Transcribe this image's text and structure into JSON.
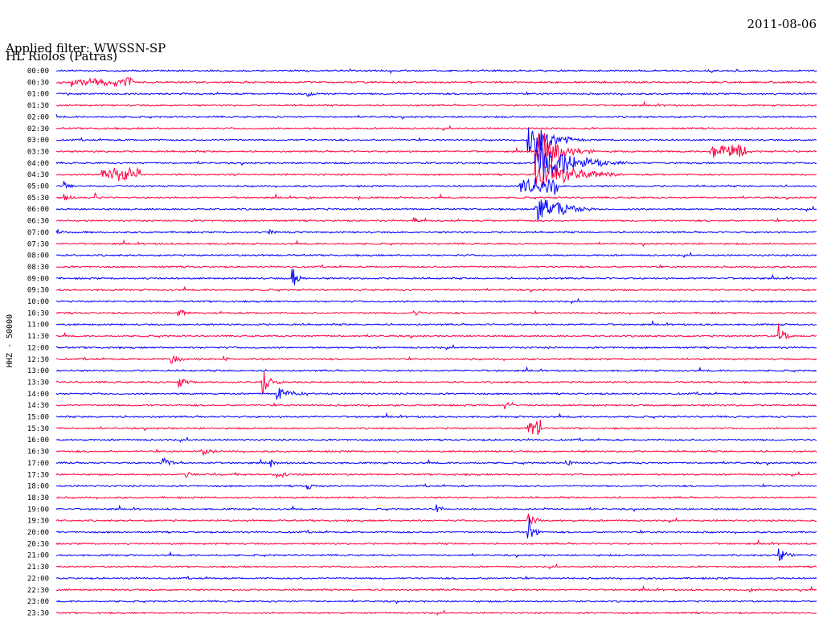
{
  "header": {
    "station": "HL Riolos (Patras)",
    "date": "2011-08-06",
    "filter_label": "Applied filter: WWSSN-SP"
  },
  "colors": {
    "trace_even": "#0000ff",
    "trace_odd": "#ff0040"
  },
  "chart_data": {
    "type": "line",
    "ylabel": "HHZ - 50000",
    "row_labels": [
      "00:00",
      "00:30",
      "01:00",
      "01:30",
      "02:00",
      "02:30",
      "03:00",
      "03:30",
      "04:00",
      "04:30",
      "05:00",
      "05:30",
      "06:00",
      "06:30",
      "07:00",
      "07:30",
      "08:00",
      "08:30",
      "09:00",
      "09:30",
      "10:00",
      "10:30",
      "11:00",
      "11:30",
      "12:00",
      "12:30",
      "13:00",
      "13:30",
      "14:00",
      "14:30",
      "15:00",
      "15:30",
      "16:00",
      "16:30",
      "17:00",
      "17:30",
      "18:00",
      "18:30",
      "19:00",
      "19:30",
      "20:00",
      "20:30",
      "21:00",
      "21:30",
      "22:00",
      "22:30",
      "23:00",
      "23:30"
    ],
    "x_range_minutes": [
      0,
      30
    ],
    "events": [
      {
        "row": 1,
        "t": 0.02,
        "amp": 6,
        "dur": 0.08,
        "type": "burst"
      },
      {
        "row": 2,
        "t": 0.33,
        "amp": 5,
        "dur": 0.04,
        "type": "quake"
      },
      {
        "row": 6,
        "t": 0.62,
        "amp": 30,
        "dur": 0.08,
        "type": "quake"
      },
      {
        "row": 7,
        "t": 0.63,
        "amp": 40,
        "dur": 0.08,
        "type": "quake"
      },
      {
        "row": 7,
        "t": 0.86,
        "amp": 10,
        "dur": 0.05,
        "type": "burst"
      },
      {
        "row": 8,
        "t": 0.63,
        "amp": 35,
        "dur": 0.12,
        "type": "quake"
      },
      {
        "row": 9,
        "t": 0.06,
        "amp": 11,
        "dur": 0.05,
        "type": "burst"
      },
      {
        "row": 9,
        "t": 0.63,
        "amp": 30,
        "dur": 0.12,
        "type": "quake"
      },
      {
        "row": 10,
        "t": 0.61,
        "amp": 12,
        "dur": 0.05,
        "type": "burst"
      },
      {
        "row": 10,
        "t": 0.01,
        "amp": 12,
        "dur": 0.02,
        "type": "quake"
      },
      {
        "row": 11,
        "t": 0.01,
        "amp": 12,
        "dur": 0.02,
        "type": "quake"
      },
      {
        "row": 11,
        "t": 0.05,
        "amp": 10,
        "dur": 0.02,
        "type": "quake"
      },
      {
        "row": 11,
        "t": 0.33,
        "amp": 4,
        "dur": 0.03,
        "type": "quake"
      },
      {
        "row": 12,
        "t": 0.63,
        "amp": 30,
        "dur": 0.08,
        "type": "quake"
      },
      {
        "row": 13,
        "t": 0.47,
        "amp": 6,
        "dur": 0.02,
        "type": "quake"
      },
      {
        "row": 14,
        "t": 0.28,
        "amp": 8,
        "dur": 0.02,
        "type": "quake"
      },
      {
        "row": 14,
        "t": 0.0,
        "amp": 9,
        "dur": 0.02,
        "type": "quake"
      },
      {
        "row": 18,
        "t": 0.31,
        "amp": 20,
        "dur": 0.02,
        "type": "quake"
      },
      {
        "row": 21,
        "t": 0.16,
        "amp": 7,
        "dur": 0.03,
        "type": "quake"
      },
      {
        "row": 21,
        "t": 0.47,
        "amp": 9,
        "dur": 0.02,
        "type": "quake"
      },
      {
        "row": 23,
        "t": 0.95,
        "amp": 20,
        "dur": 0.02,
        "type": "quake"
      },
      {
        "row": 25,
        "t": 0.15,
        "amp": 12,
        "dur": 0.03,
        "type": "quake"
      },
      {
        "row": 25,
        "t": 0.22,
        "amp": 5,
        "dur": 0.02,
        "type": "quake"
      },
      {
        "row": 27,
        "t": 0.16,
        "amp": 12,
        "dur": 0.03,
        "type": "quake"
      },
      {
        "row": 27,
        "t": 0.27,
        "amp": 20,
        "dur": 0.03,
        "type": "quake"
      },
      {
        "row": 28,
        "t": 0.29,
        "amp": 12,
        "dur": 0.05,
        "type": "quake"
      },
      {
        "row": 29,
        "t": 0.59,
        "amp": 6,
        "dur": 0.02,
        "type": "quake"
      },
      {
        "row": 31,
        "t": 0.62,
        "amp": 12,
        "dur": 0.02,
        "type": "burst"
      },
      {
        "row": 33,
        "t": 0.19,
        "amp": 14,
        "dur": 0.03,
        "type": "quake"
      },
      {
        "row": 34,
        "t": 0.14,
        "amp": 18,
        "dur": 0.02,
        "type": "quake"
      },
      {
        "row": 34,
        "t": 0.28,
        "amp": 10,
        "dur": 0.02,
        "type": "quake"
      },
      {
        "row": 34,
        "t": 0.67,
        "amp": 6,
        "dur": 0.03,
        "type": "quake"
      },
      {
        "row": 35,
        "t": 0.17,
        "amp": 7,
        "dur": 0.02,
        "type": "quake"
      },
      {
        "row": 35,
        "t": 0.29,
        "amp": 6,
        "dur": 0.04,
        "type": "quake"
      },
      {
        "row": 36,
        "t": 0.33,
        "amp": 8,
        "dur": 0.02,
        "type": "quake"
      },
      {
        "row": 38,
        "t": 0.5,
        "amp": 8,
        "dur": 0.02,
        "type": "quake"
      },
      {
        "row": 39,
        "t": 0.62,
        "amp": 25,
        "dur": 0.02,
        "type": "quake"
      },
      {
        "row": 40,
        "t": 0.62,
        "amp": 30,
        "dur": 0.02,
        "type": "quake"
      },
      {
        "row": 42,
        "t": 0.95,
        "amp": 14,
        "dur": 0.03,
        "type": "quake"
      },
      {
        "row": 45,
        "t": 0.91,
        "amp": 6,
        "dur": 0.02,
        "type": "quake"
      }
    ]
  }
}
